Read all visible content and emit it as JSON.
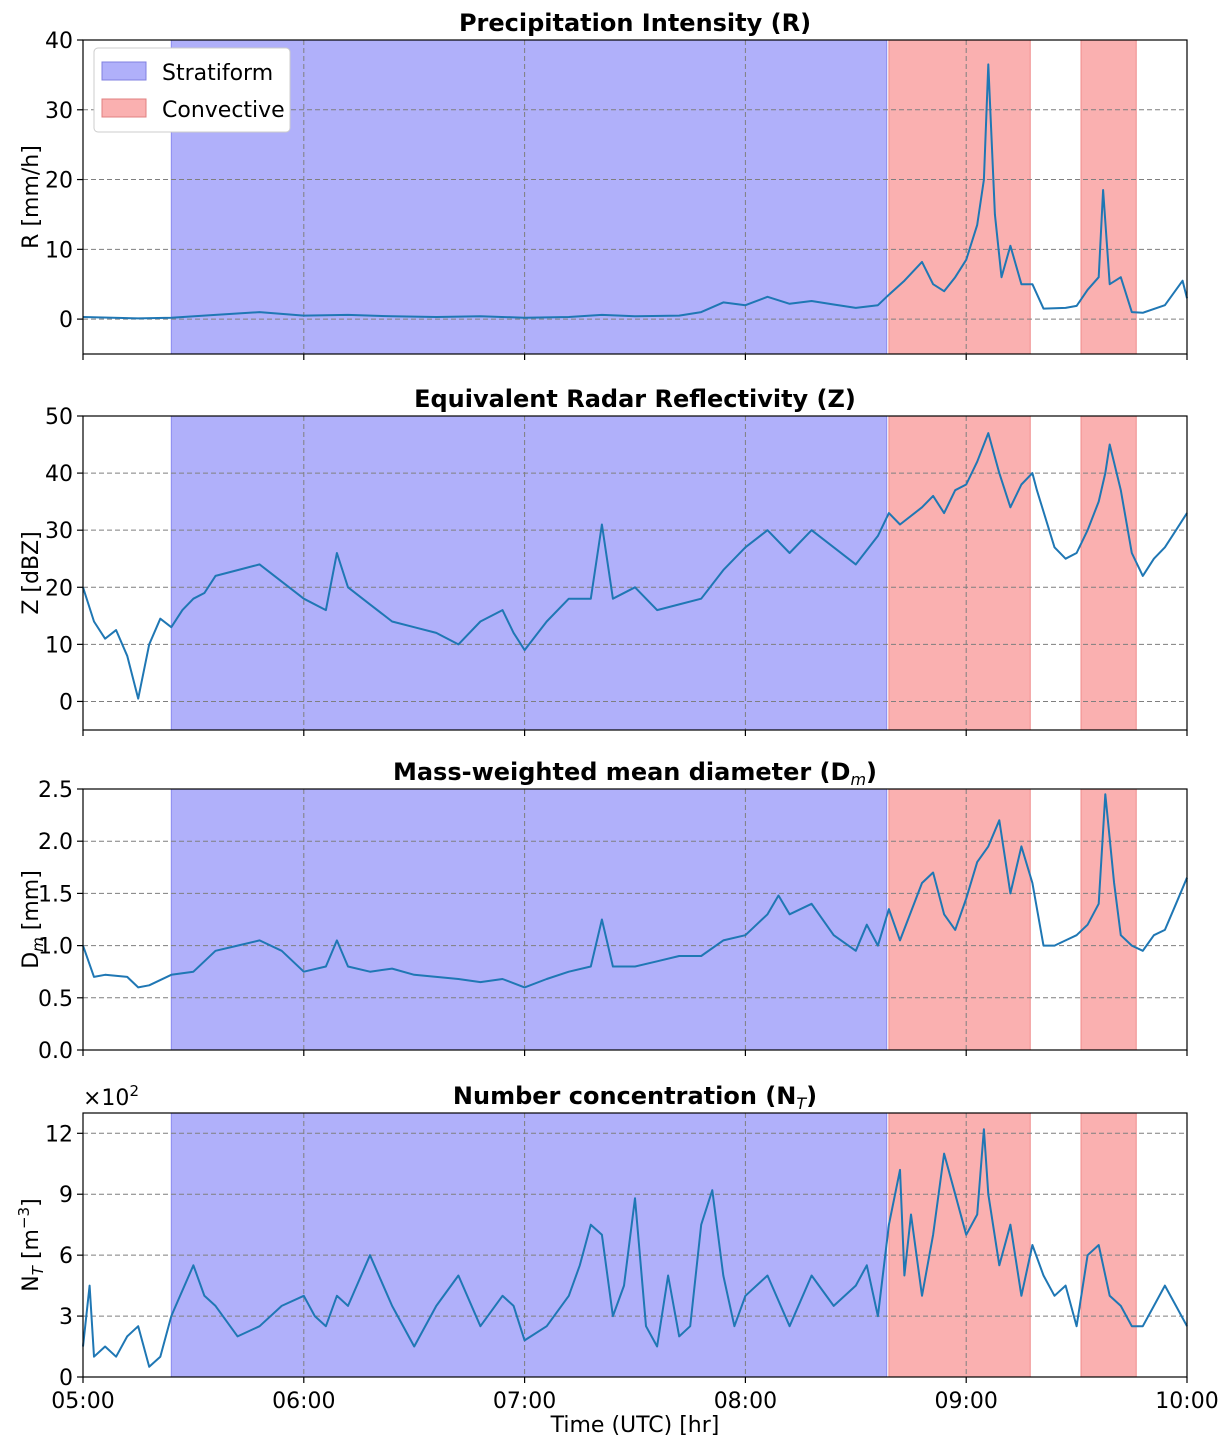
{
  "xaxis": {
    "label": "Time (UTC) [hr]",
    "ticks": [
      "05:00",
      "06:00",
      "07:00",
      "08:00",
      "09:00",
      "10:00"
    ],
    "range_hours": [
      5.0,
      10.0
    ]
  },
  "legend": {
    "placement": "top-left",
    "items": [
      {
        "label": "Stratiform",
        "color": "#b0b0fa"
      },
      {
        "label": "Convective",
        "color": "#fab0b0"
      }
    ]
  },
  "colors": {
    "line": "#1f77b4",
    "stratiform": "#b0b0fa",
    "convective": "#fab0b0",
    "grid": "#7f7f7f"
  },
  "regimes": {
    "stratiform": [
      [
        5.4,
        8.64
      ]
    ],
    "convective": [
      [
        8.65,
        9.29
      ],
      [
        9.52,
        9.77
      ]
    ]
  },
  "panels": [
    {
      "title": "Precipitation Intensity (R)",
      "ylabel": "R [mm/h]",
      "ylim": [
        -5,
        40
      ],
      "yticks": [
        0,
        10,
        20,
        30,
        40
      ],
      "ytick_labels": [
        "0",
        "10",
        "20",
        "30",
        "40"
      ]
    },
    {
      "title": "Equivalent Radar Reflectivity (Z)",
      "ylabel": "Z [dBZ]",
      "ylim": [
        -5,
        50
      ],
      "yticks": [
        0,
        10,
        20,
        30,
        40,
        50
      ],
      "ytick_labels": [
        "0",
        "10",
        "20",
        "30",
        "40",
        "50"
      ]
    },
    {
      "title": "Mass-weighted mean diameter (D",
      "title_sub": "m",
      "title_end": ")",
      "ylabel": "D",
      "ylabel_sub": "m",
      "ylabel_end": " [mm]",
      "ylim": [
        0,
        2.5
      ],
      "yticks": [
        0,
        0.5,
        1.0,
        1.5,
        2.0,
        2.5
      ],
      "ytick_labels": [
        "0.0",
        "0.5",
        "1.0",
        "1.5",
        "2.0",
        "2.5"
      ]
    },
    {
      "title": "Number concentration (N",
      "title_sub": "T",
      "title_end": ")",
      "ylabel": "N",
      "ylabel_sub": "T",
      "ylabel_end": " [m",
      "ylabel_sup": "−3",
      "ylabel_close": "]",
      "offset_base": "×10",
      "offset_exp": "2",
      "ylim": [
        0,
        13
      ],
      "yticks": [
        0,
        3,
        6,
        9,
        12
      ],
      "ytick_labels": [
        "0",
        "3",
        "6",
        "9",
        "12"
      ]
    }
  ],
  "chart_data": [
    {
      "type": "line",
      "title": "Precipitation Intensity (R)",
      "xlabel": "",
      "ylabel": "R [mm/h]",
      "xlim": [
        "05:00",
        "10:00"
      ],
      "ylim": [
        -5,
        40
      ],
      "grid": true,
      "x_hours": [
        5.0,
        5.25,
        5.4,
        5.6,
        5.8,
        6.0,
        6.2,
        6.4,
        6.6,
        6.8,
        7.0,
        7.2,
        7.35,
        7.5,
        7.7,
        7.8,
        7.9,
        8.0,
        8.1,
        8.2,
        8.3,
        8.4,
        8.5,
        8.6,
        8.65,
        8.72,
        8.8,
        8.85,
        8.9,
        8.95,
        9.0,
        9.05,
        9.08,
        9.1,
        9.13,
        9.16,
        9.2,
        9.25,
        9.3,
        9.35,
        9.45,
        9.5,
        9.55,
        9.6,
        9.62,
        9.65,
        9.7,
        9.75,
        9.8,
        9.9,
        9.98,
        10.0
      ],
      "series": [
        {
          "values": [
            0.3,
            0.1,
            0.2,
            0.6,
            1.0,
            0.5,
            0.6,
            0.4,
            0.3,
            0.4,
            0.2,
            0.3,
            0.6,
            0.4,
            0.5,
            1.0,
            2.4,
            2.0,
            3.2,
            2.2,
            2.6,
            2.1,
            1.6,
            2.0,
            3.5,
            5.5,
            8.2,
            5.0,
            4.0,
            6.0,
            8.5,
            13.5,
            20.0,
            36.5,
            15.0,
            6.0,
            10.5,
            5.0,
            5.0,
            1.5,
            1.6,
            1.9,
            4.2,
            6.0,
            18.5,
            5.0,
            6.0,
            1.0,
            0.9,
            2.0,
            5.5,
            3.0
          ]
        }
      ]
    },
    {
      "type": "line",
      "title": "Equivalent Radar Reflectivity (Z)",
      "xlabel": "",
      "ylabel": "Z [dBZ]",
      "xlim": [
        "05:00",
        "10:00"
      ],
      "ylim": [
        -5,
        50
      ],
      "grid": true,
      "x_hours": [
        5.0,
        5.05,
        5.1,
        5.15,
        5.2,
        5.25,
        5.3,
        5.35,
        5.4,
        5.45,
        5.5,
        5.55,
        5.6,
        5.7,
        5.8,
        5.9,
        6.0,
        6.1,
        6.15,
        6.2,
        6.3,
        6.4,
        6.5,
        6.6,
        6.7,
        6.8,
        6.9,
        6.95,
        7.0,
        7.1,
        7.2,
        7.3,
        7.35,
        7.4,
        7.5,
        7.6,
        7.7,
        7.8,
        7.9,
        8.0,
        8.1,
        8.2,
        8.3,
        8.4,
        8.5,
        8.6,
        8.65,
        8.7,
        8.8,
        8.85,
        8.9,
        8.95,
        9.0,
        9.05,
        9.1,
        9.15,
        9.2,
        9.25,
        9.3,
        9.32,
        9.4,
        9.45,
        9.5,
        9.55,
        9.6,
        9.63,
        9.65,
        9.7,
        9.75,
        9.8,
        9.85,
        9.9,
        9.95,
        10.0
      ],
      "series": [
        {
          "values": [
            20,
            14,
            11,
            12.5,
            8,
            0.5,
            10,
            14.5,
            13,
            16,
            18,
            19,
            22,
            23,
            24,
            21,
            18,
            16,
            26,
            20,
            17,
            14,
            13,
            12,
            10,
            14,
            16,
            12,
            9,
            14,
            18,
            18,
            31,
            18,
            20,
            16,
            17,
            18,
            23,
            27,
            30,
            26,
            30,
            27,
            24,
            29,
            33,
            31,
            34,
            36,
            33,
            37,
            38,
            42,
            47,
            40,
            34,
            38,
            40,
            37,
            27,
            25,
            26,
            30,
            35,
            40,
            45,
            37,
            26,
            22,
            25,
            27,
            30,
            33
          ]
        }
      ]
    },
    {
      "type": "line",
      "title": "Mass-weighted mean diameter (Dm)",
      "xlabel": "",
      "ylabel": "Dm [mm]",
      "xlim": [
        "05:00",
        "10:00"
      ],
      "ylim": [
        0,
        2.5
      ],
      "grid": true,
      "x_hours": [
        5.0,
        5.05,
        5.1,
        5.2,
        5.25,
        5.3,
        5.4,
        5.5,
        5.55,
        5.6,
        5.7,
        5.8,
        5.9,
        6.0,
        6.1,
        6.15,
        6.2,
        6.3,
        6.4,
        6.5,
        6.6,
        6.7,
        6.8,
        6.9,
        7.0,
        7.1,
        7.2,
        7.3,
        7.35,
        7.4,
        7.5,
        7.6,
        7.7,
        7.8,
        7.9,
        8.0,
        8.1,
        8.15,
        8.2,
        8.3,
        8.4,
        8.5,
        8.55,
        8.6,
        8.65,
        8.7,
        8.8,
        8.85,
        8.9,
        8.95,
        9.0,
        9.05,
        9.1,
        9.15,
        9.2,
        9.25,
        9.3,
        9.35,
        9.4,
        9.45,
        9.5,
        9.55,
        9.6,
        9.63,
        9.67,
        9.7,
        9.75,
        9.8,
        9.85,
        9.9,
        9.95,
        10.0
      ],
      "series": [
        {
          "values": [
            1.0,
            0.7,
            0.72,
            0.7,
            0.6,
            0.62,
            0.72,
            0.75,
            0.85,
            0.95,
            1.0,
            1.05,
            0.95,
            0.75,
            0.8,
            1.05,
            0.8,
            0.75,
            0.78,
            0.72,
            0.7,
            0.68,
            0.65,
            0.68,
            0.6,
            0.68,
            0.75,
            0.8,
            1.25,
            0.8,
            0.8,
            0.85,
            0.9,
            0.9,
            1.05,
            1.1,
            1.3,
            1.48,
            1.3,
            1.4,
            1.1,
            0.95,
            1.2,
            1.0,
            1.35,
            1.05,
            1.6,
            1.7,
            1.3,
            1.15,
            1.45,
            1.8,
            1.95,
            2.2,
            1.5,
            1.95,
            1.6,
            1.0,
            1.0,
            1.05,
            1.1,
            1.2,
            1.4,
            2.45,
            1.6,
            1.1,
            1.0,
            0.95,
            1.1,
            1.15,
            1.4,
            1.65
          ]
        }
      ]
    },
    {
      "type": "line",
      "title": "Number concentration (NT)",
      "xlabel": "Time (UTC) [hr]",
      "ylabel": "NT [m−3]",
      "y_multiplier": "×10^2",
      "xlim": [
        "05:00",
        "10:00"
      ],
      "ylim": [
        0,
        13
      ],
      "grid": true,
      "x_hours": [
        5.0,
        5.03,
        5.05,
        5.1,
        5.15,
        5.2,
        5.25,
        5.3,
        5.35,
        5.4,
        5.42,
        5.5,
        5.55,
        5.6,
        5.7,
        5.8,
        5.9,
        6.0,
        6.05,
        6.1,
        6.15,
        6.2,
        6.3,
        6.4,
        6.5,
        6.6,
        6.7,
        6.8,
        6.9,
        6.95,
        7.0,
        7.1,
        7.2,
        7.25,
        7.3,
        7.35,
        7.4,
        7.45,
        7.5,
        7.55,
        7.6,
        7.65,
        7.7,
        7.75,
        7.8,
        7.85,
        7.9,
        7.95,
        8.0,
        8.1,
        8.2,
        8.3,
        8.4,
        8.5,
        8.55,
        8.6,
        8.65,
        8.7,
        8.72,
        8.75,
        8.8,
        8.85,
        8.9,
        8.95,
        9.0,
        9.05,
        9.08,
        9.1,
        9.15,
        9.2,
        9.25,
        9.3,
        9.35,
        9.4,
        9.45,
        9.5,
        9.55,
        9.6,
        9.65,
        9.7,
        9.75,
        9.8,
        9.85,
        9.9,
        9.95,
        10.0
      ],
      "series": [
        {
          "values": [
            1.5,
            4.5,
            1.0,
            1.5,
            1.0,
            2.0,
            2.5,
            0.5,
            1.0,
            3.0,
            3.5,
            5.5,
            4.0,
            3.5,
            2.0,
            2.5,
            3.5,
            4.0,
            3.0,
            2.5,
            4.0,
            3.5,
            6.0,
            3.5,
            1.5,
            3.5,
            5.0,
            2.5,
            4.0,
            3.5,
            1.8,
            2.5,
            4.0,
            5.5,
            7.5,
            7.0,
            3.0,
            4.5,
            8.8,
            2.5,
            1.5,
            5.0,
            2.0,
            2.5,
            7.5,
            9.2,
            5.0,
            2.5,
            4.0,
            5.0,
            2.5,
            5.0,
            3.5,
            4.5,
            5.5,
            3.0,
            7.5,
            10.2,
            5.0,
            8.0,
            4.0,
            7.0,
            11.0,
            9.0,
            7.0,
            8.0,
            12.2,
            9.0,
            5.5,
            7.5,
            4.0,
            6.5,
            5.0,
            4.0,
            4.5,
            2.5,
            6.0,
            6.5,
            4.0,
            3.5,
            2.5,
            2.5,
            3.5,
            4.5,
            3.5,
            2.5
          ]
        }
      ]
    }
  ]
}
